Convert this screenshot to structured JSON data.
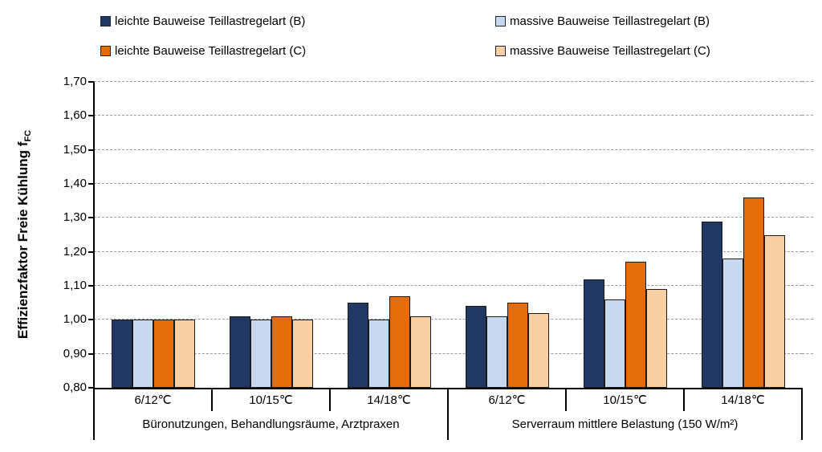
{
  "chart_data": {
    "type": "bar",
    "title": "",
    "y_axis": {
      "title": "Effizienzfaktor Freie Kühlung f",
      "title_subscript": "FC",
      "tick_labels": [
        "0,80",
        "0,90",
        "1,00",
        "1,10",
        "1,20",
        "1,30",
        "1,40",
        "1,50",
        "1,60",
        "1,70"
      ],
      "min": 0.8,
      "max": 1.7,
      "step": 0.1
    },
    "groups": [
      {
        "label": "Büronutzungen, Behandlungsräume, Arztpraxen",
        "categories": [
          "6/12℃",
          "10/15℃",
          "14/18℃"
        ]
      },
      {
        "label": "Serverraum mittlere Belastung (150 W/m²)",
        "categories": [
          "6/12℃",
          "10/15℃",
          "14/18℃"
        ]
      }
    ],
    "series": [
      {
        "name": "leichte Bauweise Teillastregelart (B)",
        "color": "#1F3864",
        "values": [
          1.0,
          1.01,
          1.05,
          1.04,
          1.12,
          1.29
        ]
      },
      {
        "name": "massive Bauweise Teillastregelart (B)",
        "color": "#C8D9EF",
        "values": [
          1.0,
          1.0,
          1.0,
          1.01,
          1.06,
          1.18
        ]
      },
      {
        "name": "leichte Bauweise Teillastregelart (C)",
        "color": "#E46C0A",
        "values": [
          1.0,
          1.01,
          1.07,
          1.05,
          1.17,
          1.36
        ]
      },
      {
        "name": "massive Bauweise Teillastregelart (C)",
        "color": "#F9CFA4",
        "values": [
          1.0,
          1.0,
          1.01,
          1.02,
          1.09,
          1.25
        ]
      }
    ],
    "legend_position": "top",
    "grid": "horizontal-dashed",
    "gridline_color": "#999999",
    "bar_border_color": "#1A1A1A",
    "axis_color": "#000000"
  }
}
